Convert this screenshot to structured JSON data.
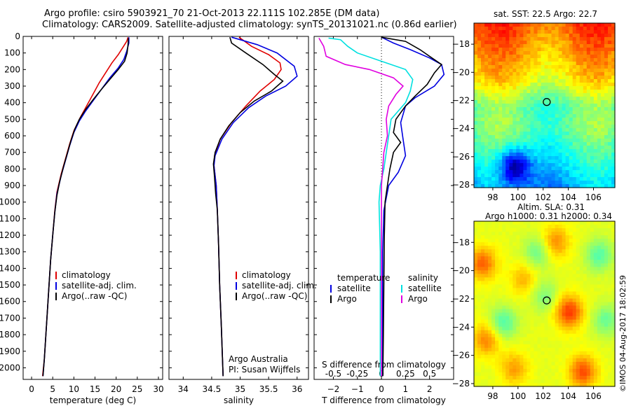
{
  "titles": {
    "line1": "Argo profile: csiro 5903921_70 21-Oct-2013 22.111S 102.285E (DM data)",
    "line2": "Climatology: CARS2009. Satellite-adjusted climatology: synTS_20131021.nc (0.86d earlier)"
  },
  "colors": {
    "climatology": "#e00000",
    "satellite": "#0000e0",
    "argo": "#000000",
    "s_sat": "#00e0e0",
    "s_argo": "#e000e0"
  },
  "chart_data": [
    {
      "type": "line",
      "id": "temperature",
      "xlabel": "temperature (deg C)",
      "ylabel": "",
      "xlim": [
        -2,
        31
      ],
      "ylim": [
        2070,
        0
      ],
      "xticks": [
        0,
        5,
        10,
        15,
        20,
        25,
        30
      ],
      "yticks": [
        0,
        100,
        200,
        300,
        400,
        500,
        600,
        700,
        800,
        900,
        1000,
        1100,
        1200,
        1300,
        1400,
        1500,
        1600,
        1700,
        1800,
        1900,
        2000
      ],
      "legend": [
        "climatology",
        "satellite-adj. clim.",
        "Argo(..raw -QC)"
      ],
      "series": [
        {
          "name": "climatology",
          "color": "#e00000",
          "points": [
            [
              22.8,
              5
            ],
            [
              22.5,
              30
            ],
            [
              21.5,
              70
            ],
            [
              20.5,
              110
            ],
            [
              19,
              160
            ],
            [
              17.5,
              220
            ],
            [
              16,
              280
            ],
            [
              14.5,
              350
            ],
            [
              13,
              420
            ],
            [
              11.5,
              490
            ],
            [
              10,
              570
            ],
            [
              9,
              650
            ],
            [
              8,
              740
            ],
            [
              7,
              830
            ],
            [
              6,
              940
            ],
            [
              5.5,
              1050
            ],
            [
              5,
              1200
            ],
            [
              4.5,
              1350
            ],
            [
              4,
              1550
            ],
            [
              3.5,
              1750
            ],
            [
              3,
              1950
            ],
            [
              2.6,
              2050
            ]
          ]
        },
        {
          "name": "satellite-adj. clim.",
          "color": "#0000e0",
          "points": [
            [
              23,
              5
            ],
            [
              23,
              40
            ],
            [
              22.5,
              90
            ],
            [
              21.8,
              140
            ],
            [
              20.5,
              190
            ],
            [
              18.5,
              250
            ],
            [
              16.5,
              320
            ],
            [
              14.5,
              390
            ],
            [
              12.8,
              450
            ],
            [
              11.3,
              510
            ],
            [
              10,
              580
            ],
            [
              9,
              660
            ],
            [
              8,
              750
            ],
            [
              7,
              840
            ],
            [
              6,
              950
            ],
            [
              5.5,
              1060
            ],
            [
              5,
              1200
            ],
            [
              4.5,
              1350
            ],
            [
              4,
              1550
            ],
            [
              3.5,
              1750
            ],
            [
              3,
              1950
            ],
            [
              2.7,
              2050
            ]
          ]
        },
        {
          "name": "Argo(..raw -QC)",
          "color": "#000000",
          "points": [
            [
              22.9,
              10
            ],
            [
              22.8,
              50
            ],
            [
              22.6,
              100
            ],
            [
              22,
              150
            ],
            [
              20.5,
              200
            ],
            [
              18.5,
              260
            ],
            [
              16.5,
              320
            ],
            [
              14.6,
              380
            ],
            [
              12.8,
              440
            ],
            [
              11.3,
              500
            ],
            [
              10.2,
              560
            ],
            [
              9.3,
              630
            ],
            [
              8.4,
              710
            ],
            [
              7.5,
              790
            ],
            [
              6.6,
              880
            ],
            [
              6,
              960
            ],
            [
              5.5,
              1060
            ],
            [
              5,
              1200
            ],
            [
              4.5,
              1350
            ],
            [
              4,
              1550
            ],
            [
              3.5,
              1750
            ],
            [
              3,
              1950
            ],
            [
              2.7,
              2050
            ]
          ]
        }
      ]
    },
    {
      "type": "line",
      "id": "salinity",
      "xlabel": "salinity",
      "ylabel": "",
      "xlim": [
        33.75,
        36.2
      ],
      "ylim": [
        2070,
        0
      ],
      "xticks": [
        34,
        34.5,
        35,
        35.5,
        36
      ],
      "xticklabels": [
        "34",
        "34.5",
        "35",
        "35.5",
        "36"
      ],
      "legend": [
        "climatology",
        "satellite-adj. clim.",
        "Argo(..raw -QC)"
      ],
      "annotations": [
        "Argo Australia",
        "PI: Susan Wijffels"
      ],
      "series": [
        {
          "name": "climatology",
          "color": "#e00000",
          "points": [
            [
              34.98,
              5
            ],
            [
              35.2,
              60
            ],
            [
              35.5,
              110
            ],
            [
              35.7,
              160
            ],
            [
              35.72,
              200
            ],
            [
              35.6,
              260
            ],
            [
              35.35,
              330
            ],
            [
              35.1,
              420
            ],
            [
              34.85,
              520
            ],
            [
              34.65,
              620
            ],
            [
              34.55,
              720
            ],
            [
              34.54,
              780
            ],
            [
              34.58,
              900
            ],
            [
              34.6,
              1050
            ],
            [
              34.62,
              1250
            ],
            [
              34.64,
              1500
            ],
            [
              34.67,
              1750
            ],
            [
              34.7,
              2050
            ]
          ]
        },
        {
          "name": "satellite-adj. clim.",
          "color": "#0000e0",
          "points": [
            [
              34.85,
              5
            ],
            [
              35,
              20
            ],
            [
              35.3,
              50
            ],
            [
              35.65,
              100
            ],
            [
              35.95,
              180
            ],
            [
              36,
              240
            ],
            [
              35.8,
              300
            ],
            [
              35.45,
              360
            ],
            [
              35.15,
              430
            ],
            [
              34.88,
              520
            ],
            [
              34.68,
              620
            ],
            [
              34.56,
              720
            ],
            [
              34.54,
              780
            ],
            [
              34.58,
              900
            ],
            [
              34.6,
              1050
            ],
            [
              34.62,
              1250
            ],
            [
              34.64,
              1500
            ],
            [
              34.67,
              1750
            ],
            [
              34.7,
              2050
            ]
          ]
        },
        {
          "name": "Argo(..raw -QC)",
          "color": "#000000",
          "points": [
            [
              34.82,
              5
            ],
            [
              34.85,
              40
            ],
            [
              35.1,
              100
            ],
            [
              35.4,
              170
            ],
            [
              35.6,
              230
            ],
            [
              35.75,
              270
            ],
            [
              35.55,
              330
            ],
            [
              35.25,
              390
            ],
            [
              35,
              460
            ],
            [
              34.8,
              540
            ],
            [
              34.65,
              620
            ],
            [
              34.56,
              700
            ],
            [
              34.53,
              770
            ],
            [
              34.55,
              850
            ],
            [
              34.57,
              950
            ],
            [
              34.6,
              1050
            ],
            [
              34.62,
              1250
            ],
            [
              34.64,
              1500
            ],
            [
              34.67,
              1750
            ],
            [
              34.7,
              2050
            ]
          ]
        }
      ]
    },
    {
      "type": "line",
      "id": "difference",
      "xlabel": "T difference from climatology",
      "xlabel2": "S difference from climatology",
      "xlim": [
        -2.8,
        3.0
      ],
      "ylim": [
        2070,
        0
      ],
      "xticks": [
        -2,
        -1,
        0,
        1,
        2
      ],
      "sticks": [
        -0.5,
        -0.25,
        0,
        0.25,
        0.5
      ],
      "sticklabels": [
        "-0.5",
        "-0.25",
        "0",
        "0.25",
        "0.5"
      ],
      "legend_headers": [
        "temperature",
        "salinity"
      ],
      "legend": [
        "satellite",
        "Argo",
        "satellite",
        "Argo"
      ],
      "series": [
        {
          "name": "satellite",
          "group": "temperature",
          "color": "#0000e0",
          "points": [
            [
              0,
              5
            ],
            [
              0.5,
              40
            ],
            [
              1.2,
              80
            ],
            [
              2,
              130
            ],
            [
              2.5,
              170
            ],
            [
              2.6,
              230
            ],
            [
              2.2,
              300
            ],
            [
              1.4,
              370
            ],
            [
              1,
              420
            ],
            [
              0.8,
              520
            ],
            [
              0.9,
              620
            ],
            [
              1,
              720
            ],
            [
              0.7,
              820
            ],
            [
              0.3,
              900
            ],
            [
              0.1,
              1050
            ],
            [
              0.05,
              1300
            ],
            [
              0.05,
              1600
            ],
            [
              0.05,
              2050
            ]
          ]
        },
        {
          "name": "Argo",
          "group": "temperature",
          "color": "#000000",
          "points": [
            [
              0,
              5
            ],
            [
              1,
              30
            ],
            [
              1.6,
              80
            ],
            [
              2.1,
              130
            ],
            [
              2.5,
              170
            ],
            [
              2.2,
              220
            ],
            [
              1.9,
              290
            ],
            [
              1.4,
              360
            ],
            [
              1,
              420
            ],
            [
              0.6,
              500
            ],
            [
              0.5,
              580
            ],
            [
              0.8,
              640
            ],
            [
              0.5,
              700
            ],
            [
              0.35,
              800
            ],
            [
              0.25,
              900
            ],
            [
              0.15,
              1000
            ],
            [
              0.12,
              1200
            ],
            [
              0.1,
              1500
            ],
            [
              0.08,
              1800
            ],
            [
              0.06,
              2050
            ]
          ]
        },
        {
          "name": "satellite",
          "group": "salinity",
          "color": "#00e0e0",
          "points": [
            [
              -2.2,
              10
            ],
            [
              -1.7,
              20
            ],
            [
              -1.4,
              60
            ],
            [
              -1,
              100
            ],
            [
              0,
              150
            ],
            [
              1,
              200
            ],
            [
              1.3,
              260
            ],
            [
              1.2,
              330
            ],
            [
              1,
              400
            ],
            [
              0.4,
              500
            ],
            [
              0.3,
              600
            ],
            [
              0.2,
              700
            ],
            [
              0.1,
              800
            ],
            [
              -0.05,
              900
            ],
            [
              -0.1,
              1000
            ],
            [
              -0.05,
              1300
            ],
            [
              -0.05,
              1600
            ],
            [
              -0.05,
              1900
            ],
            [
              -0.05,
              2050
            ]
          ]
        },
        {
          "name": "Argo",
          "group": "salinity",
          "color": "#e000e0",
          "points": [
            [
              -2.6,
              10
            ],
            [
              -2.4,
              60
            ],
            [
              -2.3,
              120
            ],
            [
              -1.5,
              170
            ],
            [
              -0.5,
              200
            ],
            [
              0.5,
              250
            ],
            [
              0.9,
              300
            ],
            [
              0.6,
              350
            ],
            [
              0.3,
              420
            ],
            [
              0.2,
              500
            ],
            [
              0.25,
              600
            ],
            [
              0.1,
              700
            ],
            [
              0.05,
              800
            ],
            [
              0,
              900
            ],
            [
              0,
              1100
            ],
            [
              0,
              1400
            ],
            [
              0,
              1700
            ],
            [
              0,
              2050
            ]
          ]
        }
      ]
    },
    {
      "type": "heatmap",
      "id": "sst",
      "title": "sat. SST: 22.5 Argo: 22.7",
      "xlim": [
        96.5,
        107.7
      ],
      "ylim": [
        -28.2,
        -16.5
      ],
      "xticks": [
        98,
        100,
        102,
        104,
        106
      ],
      "yticks": [
        -18,
        -20,
        -22,
        -24,
        -26,
        -28
      ],
      "marker": [
        102.285,
        -22.111
      ]
    },
    {
      "type": "heatmap",
      "id": "sla",
      "title": "Altim. SLA: 0.31",
      "subtitle": "Argo h1000: 0.31 h2000: 0.34",
      "xlim": [
        96.5,
        107.7
      ],
      "ylim": [
        -28.2,
        -16.5
      ],
      "xticks": [
        98,
        100,
        102,
        104,
        106
      ],
      "yticks": [
        -18,
        -20,
        -22,
        -24,
        -26,
        -28
      ],
      "marker": [
        102.285,
        -22.111
      ]
    }
  ],
  "footer": {
    "credit": "©IMOS 04-Aug-2017 18:02:59"
  }
}
